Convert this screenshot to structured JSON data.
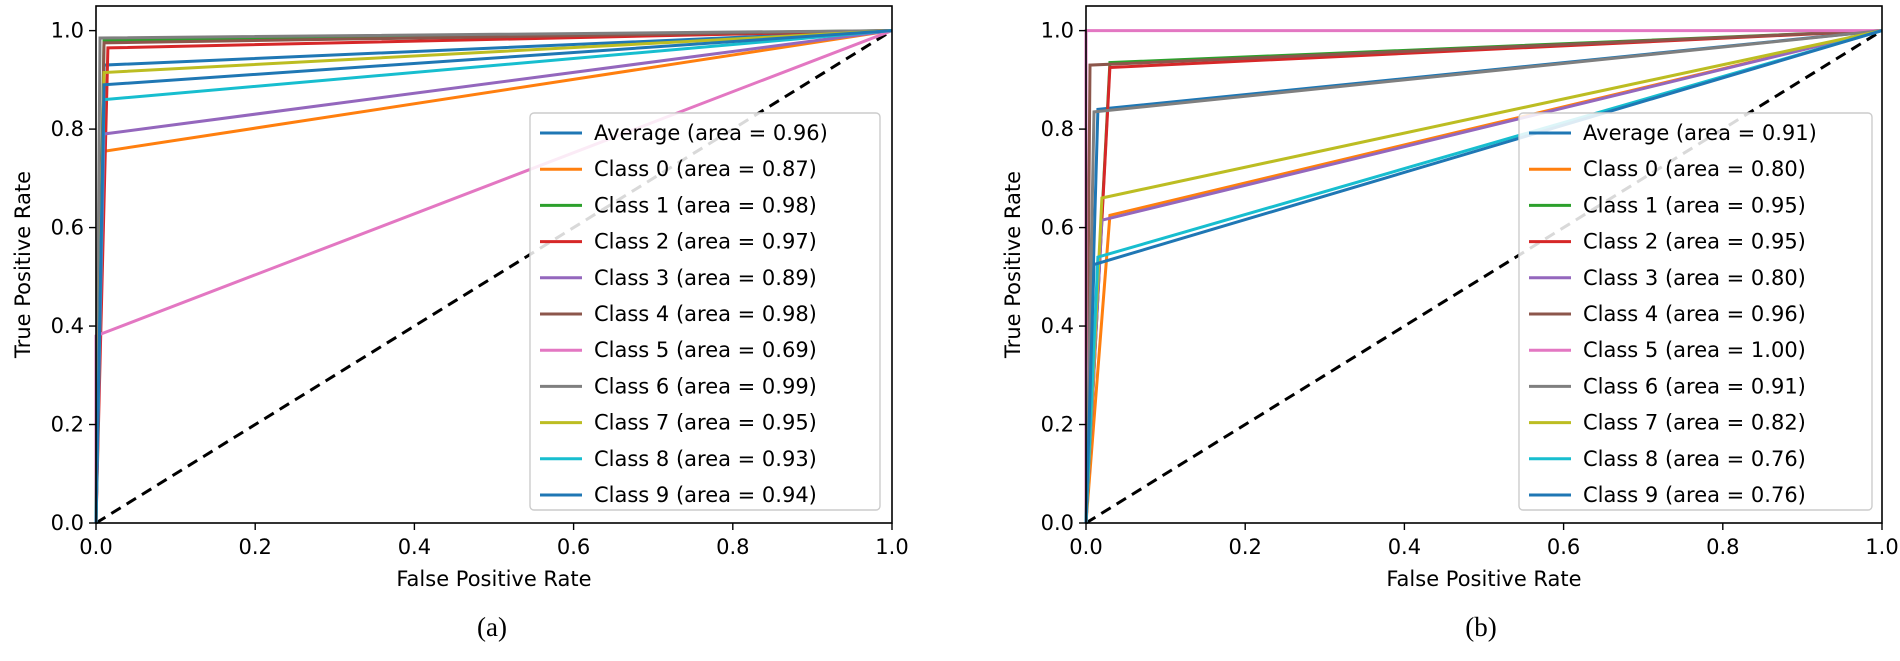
{
  "colors": {
    "diag": "#000000",
    "axis": "#000000",
    "legend_border": "#cccccc"
  },
  "chart_data": [
    {
      "id": "a",
      "caption": "(a)",
      "type": "line",
      "xlabel": "False Positive Rate",
      "ylabel": "True Positive Rate",
      "xlim": [
        0,
        1
      ],
      "ylim": [
        0,
        1.05
      ],
      "xticks": [
        "0.0",
        "0.2",
        "0.4",
        "0.6",
        "0.8",
        "1.0"
      ],
      "yticks": [
        "0.0",
        "0.2",
        "0.4",
        "0.6",
        "0.8",
        "1.0"
      ],
      "legend_position": "center-right",
      "diagonal": true,
      "series": [
        {
          "name": "Average (area = 0.96)",
          "color": "#1f77b4",
          "x": [
            0,
            0.01,
            1
          ],
          "y": [
            0,
            0.93,
            1
          ]
        },
        {
          "name": "Class 0 (area = 0.87)",
          "color": "#ff7f0e",
          "x": [
            0,
            0.01,
            1
          ],
          "y": [
            0,
            0.755,
            1
          ]
        },
        {
          "name": "Class 1 (area = 0.98)",
          "color": "#2ca02c",
          "x": [
            0,
            0.01,
            1
          ],
          "y": [
            0,
            0.98,
            1
          ]
        },
        {
          "name": "Class 2 (area = 0.97)",
          "color": "#d62728",
          "x": [
            0,
            0.015,
            1
          ],
          "y": [
            0,
            0.965,
            1
          ]
        },
        {
          "name": "Class 3 (area = 0.89)",
          "color": "#9467bd",
          "x": [
            0,
            0.01,
            1
          ],
          "y": [
            0,
            0.79,
            1
          ]
        },
        {
          "name": "Class 4 (area = 0.98)",
          "color": "#8c564b",
          "x": [
            0,
            0.01,
            1
          ],
          "y": [
            0,
            0.975,
            1
          ]
        },
        {
          "name": "Class 5 (area = 0.69)",
          "color": "#e377c2",
          "x": [
            0,
            0.0,
            1
          ],
          "y": [
            0,
            0.38,
            1
          ]
        },
        {
          "name": "Class 6 (area = 0.99)",
          "color": "#7f7f7f",
          "x": [
            0,
            0.005,
            1
          ],
          "y": [
            0,
            0.985,
            1
          ]
        },
        {
          "name": "Class 7 (area = 0.95)",
          "color": "#bcbd22",
          "x": [
            0,
            0.01,
            1
          ],
          "y": [
            0,
            0.915,
            1
          ]
        },
        {
          "name": "Class 8 (area = 0.93)",
          "color": "#17becf",
          "x": [
            0,
            0.01,
            1
          ],
          "y": [
            0,
            0.86,
            1
          ]
        },
        {
          "name": "Class 9 (area = 0.94)",
          "color": "#1f77b4",
          "x": [
            0,
            0.01,
            1
          ],
          "y": [
            0,
            0.89,
            1
          ]
        }
      ]
    },
    {
      "id": "b",
      "caption": "(b)",
      "type": "line",
      "xlabel": "False Positive Rate",
      "ylabel": "True Positive Rate",
      "xlim": [
        0,
        1
      ],
      "ylim": [
        0,
        1.05
      ],
      "xticks": [
        "0.0",
        "0.2",
        "0.4",
        "0.6",
        "0.8",
        "1.0"
      ],
      "yticks": [
        "0.0",
        "0.2",
        "0.4",
        "0.6",
        "0.8",
        "1.0"
      ],
      "legend_position": "center-right",
      "diagonal": true,
      "series": [
        {
          "name": "Average (area = 0.91)",
          "color": "#1f77b4",
          "x": [
            0,
            0.015,
            1
          ],
          "y": [
            0,
            0.84,
            1
          ]
        },
        {
          "name": "Class 0 (area = 0.80)",
          "color": "#ff7f0e",
          "x": [
            0,
            0.03,
            1
          ],
          "y": [
            0,
            0.625,
            1
          ]
        },
        {
          "name": "Class 1 (area = 0.95)",
          "color": "#2ca02c",
          "x": [
            0,
            0.03,
            1
          ],
          "y": [
            0,
            0.935,
            1
          ]
        },
        {
          "name": "Class 2 (area = 0.95)",
          "color": "#d62728",
          "x": [
            0,
            0.03,
            1
          ],
          "y": [
            0,
            0.925,
            1
          ]
        },
        {
          "name": "Class 3 (area = 0.80)",
          "color": "#9467bd",
          "x": [
            0,
            0.02,
            1
          ],
          "y": [
            0,
            0.615,
            1
          ]
        },
        {
          "name": "Class 4 (area = 0.96)",
          "color": "#8c564b",
          "x": [
            0,
            0.005,
            1
          ],
          "y": [
            0,
            0.93,
            1
          ]
        },
        {
          "name": "Class 5 (area = 1.00)",
          "color": "#e377c2",
          "x": [
            0,
            0.0,
            1
          ],
          "y": [
            0,
            1.0,
            1
          ]
        },
        {
          "name": "Class 6 (area = 0.91)",
          "color": "#7f7f7f",
          "x": [
            0,
            0.01,
            1
          ],
          "y": [
            0,
            0.835,
            1
          ]
        },
        {
          "name": "Class 7 (area = 0.82)",
          "color": "#bcbd22",
          "x": [
            0,
            0.02,
            1
          ],
          "y": [
            0,
            0.66,
            1
          ]
        },
        {
          "name": "Class 8 (area = 0.76)",
          "color": "#17becf",
          "x": [
            0,
            0.015,
            1
          ],
          "y": [
            0,
            0.54,
            1
          ]
        },
        {
          "name": "Class 9 (area = 0.76)",
          "color": "#1f77b4",
          "x": [
            0,
            0.01,
            1
          ],
          "y": [
            0,
            0.525,
            1
          ]
        }
      ]
    }
  ]
}
